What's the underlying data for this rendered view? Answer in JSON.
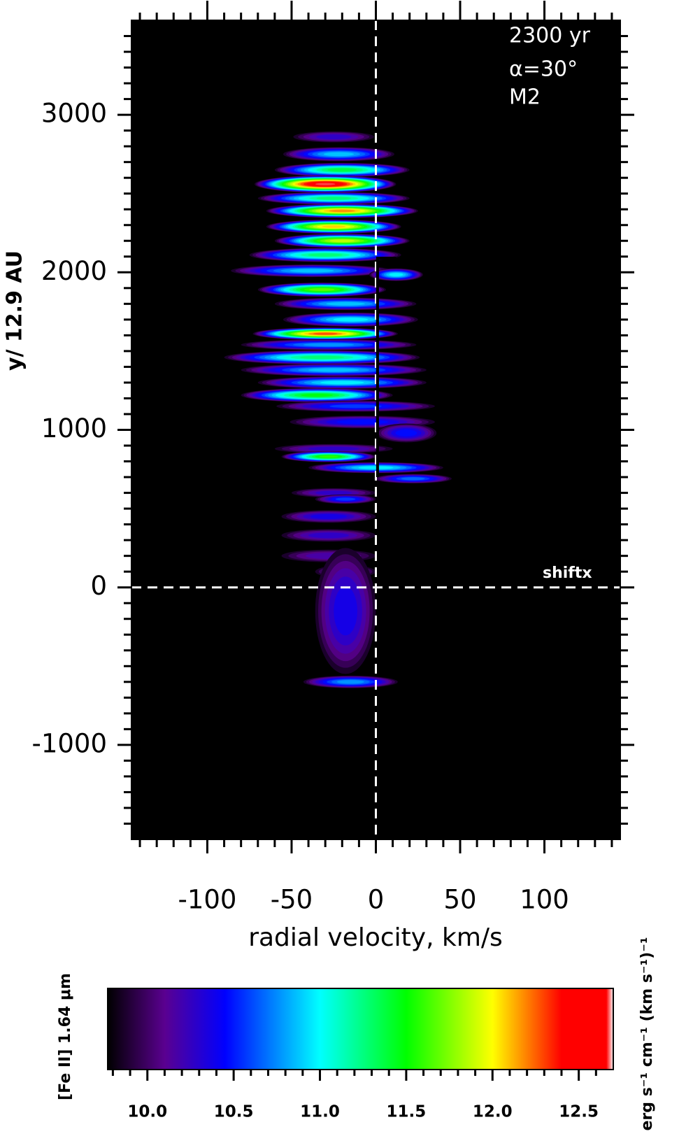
{
  "chart_data": {
    "type": "heatmap",
    "annotations": [
      "2300 yr",
      "α=30°",
      "M2"
    ],
    "ref_label": "shiftx",
    "xlabel": "radial velocity, km/s",
    "ylabel": "y/ 12.9 AU",
    "xlim": [
      -145,
      145
    ],
    "ylim": [
      -1600,
      3600
    ],
    "xticks": [
      -100,
      -50,
      0,
      50,
      100
    ],
    "yticks": [
      -1000,
      0,
      1000,
      2000,
      3000
    ],
    "xminorticks": [
      -140,
      -130,
      -120,
      -110,
      -90,
      -80,
      -70,
      -60,
      -40,
      -30,
      -20,
      -10,
      10,
      20,
      30,
      40,
      60,
      70,
      80,
      90,
      110,
      120,
      130,
      140
    ],
    "yminorticks": [
      -1500,
      -1400,
      -1300,
      -1200,
      -1100,
      -900,
      -800,
      -700,
      -600,
      -500,
      -400,
      -300,
      -200,
      -100,
      100,
      200,
      300,
      400,
      500,
      600,
      700,
      800,
      900,
      1100,
      1200,
      1300,
      1400,
      1500,
      1600,
      1700,
      1800,
      1900,
      2100,
      2200,
      2300,
      2400,
      2500,
      2600,
      2700,
      2800,
      2900,
      3100,
      3200,
      3300,
      3400,
      3500
    ],
    "reference_lines": {
      "x": 0,
      "y": 0
    },
    "overlay": {
      "color": "#000000",
      "x": [
        12,
        1,
        1
      ],
      "y": [
        2090,
        2090,
        700
      ]
    },
    "x": [
      -25,
      -22,
      -20,
      -30,
      -25,
      -20,
      -25,
      -20,
      -30,
      -38,
      12,
      -32,
      -18,
      -15,
      -30,
      -28,
      -32,
      -25,
      -20,
      -35,
      -12,
      -8,
      18,
      -25,
      -28,
      0,
      22,
      -25,
      -18,
      -28,
      -28,
      -28,
      -18,
      -18,
      -15
    ],
    "y": [
      2860,
      2750,
      2650,
      2560,
      2470,
      2390,
      2290,
      2200,
      2110,
      2010,
      1985,
      1890,
      1800,
      1700,
      1610,
      1540,
      1460,
      1380,
      1300,
      1220,
      1150,
      1050,
      980,
      880,
      830,
      760,
      690,
      600,
      560,
      450,
      330,
      200,
      100,
      -150,
      -600
    ],
    "widths": [
      24,
      33,
      40,
      42,
      45,
      45,
      40,
      40,
      45,
      48,
      16,
      38,
      42,
      40,
      43,
      52,
      58,
      55,
      50,
      45,
      47,
      43,
      18,
      35,
      28,
      40,
      23,
      25,
      18,
      28,
      28,
      28,
      18,
      18,
      28
    ],
    "heights": [
      35,
      45,
      45,
      55,
      40,
      45,
      45,
      45,
      45,
      40,
      40,
      45,
      40,
      45,
      40,
      35,
      45,
      40,
      40,
      45,
      35,
      40,
      60,
      30,
      35,
      35,
      30,
      30,
      30,
      40,
      40,
      40,
      40,
      400,
      40
    ],
    "values": [
      10.3,
      10.9,
      11.4,
      12.68,
      11.3,
      12.2,
      12.1,
      11.9,
      11.3,
      10.9,
      11.0,
      11.7,
      10.9,
      11.0,
      12.3,
      10.8,
      11.3,
      10.9,
      11.0,
      11.5,
      10.6,
      10.5,
      10.5,
      10.3,
      11.6,
      11.0,
      10.7,
      10.3,
      10.6,
      10.4,
      10.3,
      10.2,
      10.3,
      10.4,
      10.8
    ],
    "colorbar": {
      "label": "[Fe II] 1.64 μm",
      "units": "erg s⁻¹ cm⁻¹ (km s⁻¹)⁻¹",
      "lim": [
        9.77,
        12.7
      ],
      "ticks": [
        {
          "value": 10,
          "label": "10.0"
        },
        10.5,
        {
          "value": 11,
          "label": "11.0"
        },
        11.5,
        {
          "value": 12,
          "label": "12.0"
        },
        12.5
      ],
      "minorticks": [
        9.8,
        9.9,
        10.1,
        10.2,
        10.3,
        10.4,
        10.6,
        10.7,
        10.8,
        10.9,
        11.1,
        11.2,
        11.3,
        11.4,
        11.6,
        11.7,
        11.8,
        11.9,
        12.1,
        12.2,
        12.3,
        12.4,
        12.6
      ],
      "stops": [
        9.77,
        10.1,
        10.45,
        11.0,
        11.5,
        12.0,
        12.4,
        12.66,
        12.7
      ],
      "colors": [
        "#000000",
        "#5a0090",
        "#0000ff",
        "#00ffff",
        "#00ff00",
        "#ffff00",
        "#ff0000",
        "#ff0000",
        "#ffffff"
      ]
    }
  }
}
